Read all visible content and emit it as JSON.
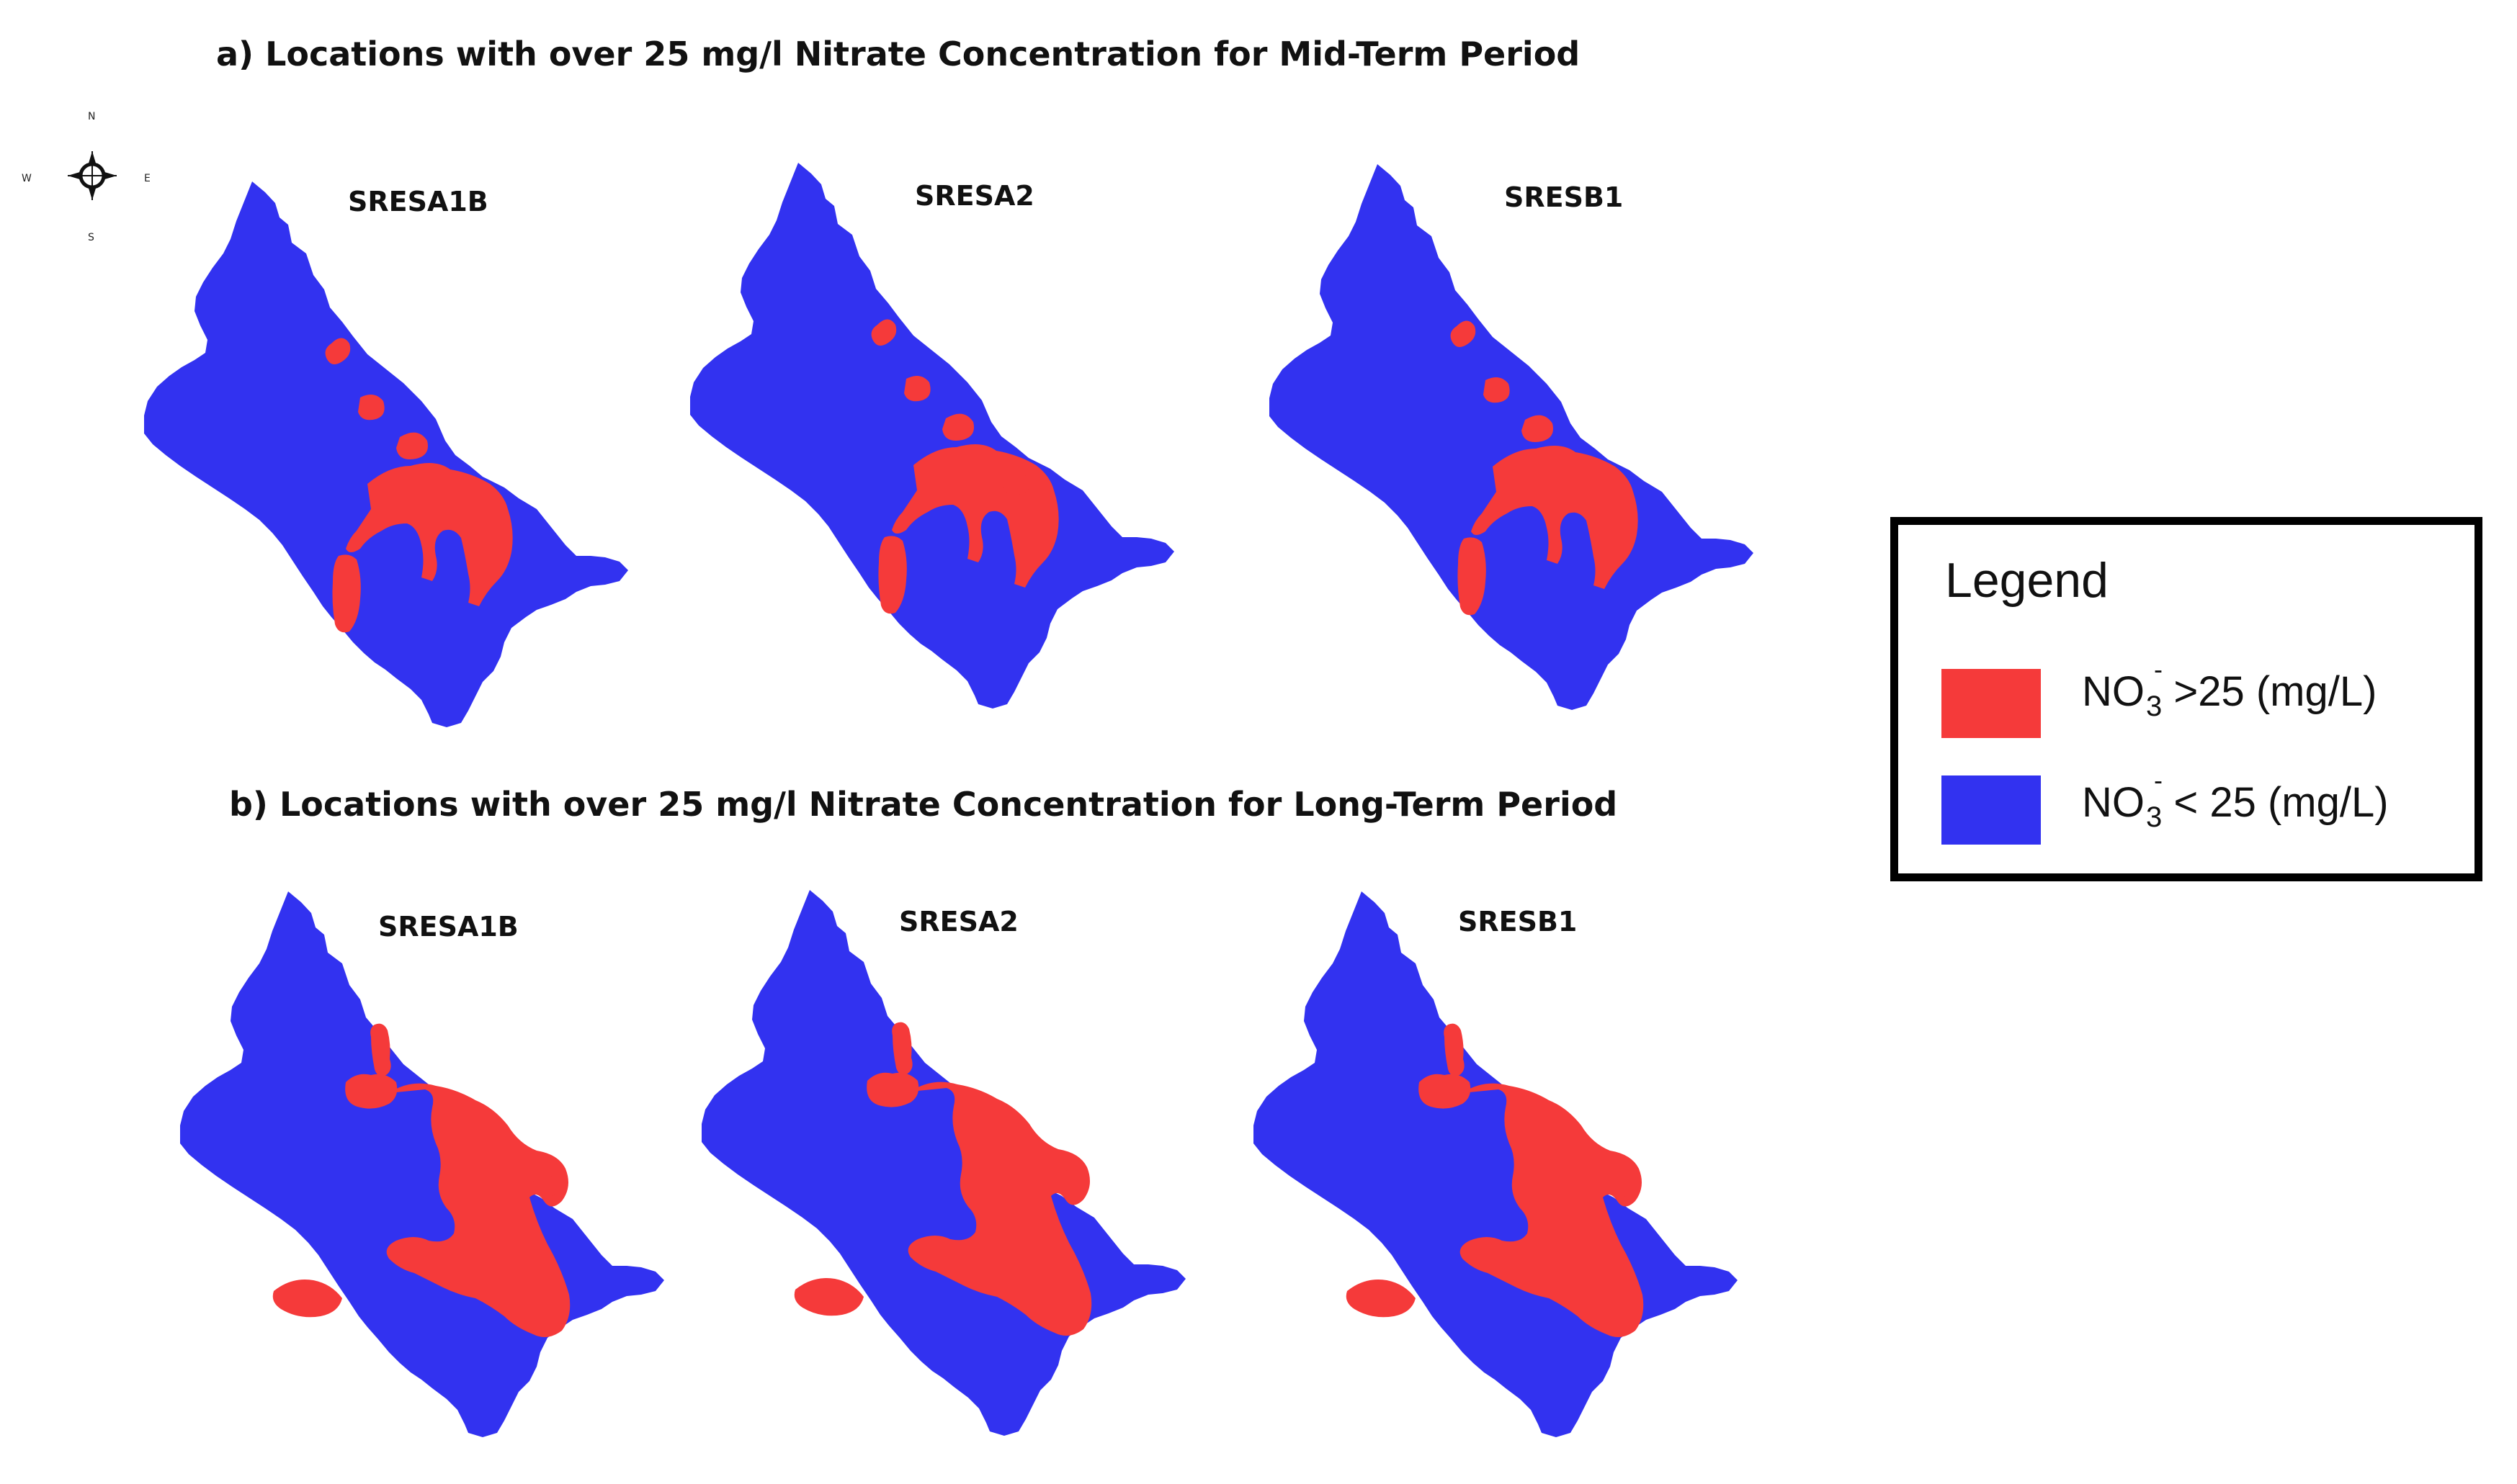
{
  "figure": {
    "panel_a": {
      "title": "a)  Locations with over 25 mg/l Nitrate Concentration for Mid-Term Period",
      "maps": [
        {
          "label": "SRESA1B"
        },
        {
          "label": "SRESA2"
        },
        {
          "label": "SRESB1"
        }
      ]
    },
    "panel_b": {
      "title": "b)  Locations with over 25 mg/l Nitrate Concentration for Long-Term Period",
      "maps": [
        {
          "label": "SRESA1B"
        },
        {
          "label": "SRESA2"
        },
        {
          "label": "SRESB1"
        }
      ]
    }
  },
  "compass": {
    "north": "N",
    "south": "S",
    "east": "E",
    "west": "W"
  },
  "legend": {
    "title": "Legend",
    "items": [
      {
        "chem": "NO",
        "subscript": "3",
        "superscript": "-",
        "label": " >25 (mg/L)",
        "color": "#f53a3a"
      },
      {
        "chem": "NO",
        "subscript": "3",
        "superscript": "-",
        "label": " < 25 (mg/L)",
        "color": "#3232f0"
      }
    ]
  },
  "colors": {
    "above_threshold": "#f53a3a",
    "below_threshold": "#3232f0"
  }
}
